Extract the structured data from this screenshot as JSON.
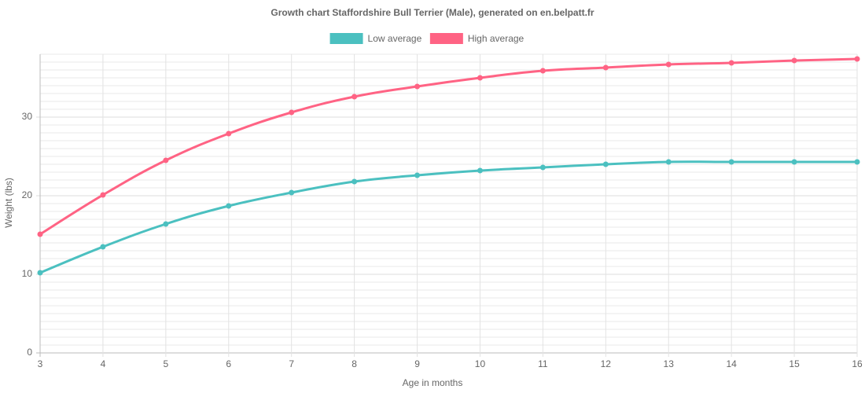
{
  "chart_data": {
    "type": "line",
    "title": "Growth chart Staffordshire Bull Terrier (Male), generated on en.belpatt.fr",
    "xlabel": "Age in months",
    "ylabel": "Weight (lbs)",
    "x": [
      3,
      4,
      5,
      6,
      7,
      8,
      9,
      10,
      11,
      12,
      13,
      14,
      15,
      16
    ],
    "series": [
      {
        "name": "Low average",
        "color": "#4bc0c0",
        "values": [
          10.2,
          13.5,
          16.4,
          18.7,
          20.4,
          21.8,
          22.6,
          23.2,
          23.6,
          24.0,
          24.3,
          24.3,
          24.3,
          24.3
        ]
      },
      {
        "name": "High average",
        "color": "#ff6384",
        "values": [
          15.1,
          20.1,
          24.5,
          27.9,
          30.6,
          32.6,
          33.9,
          35.0,
          35.9,
          36.3,
          36.7,
          36.9,
          37.2,
          37.4
        ]
      }
    ],
    "xlim": [
      3,
      16
    ],
    "xticks": [
      3,
      4,
      5,
      6,
      7,
      8,
      9,
      10,
      11,
      12,
      13,
      14,
      15,
      16
    ],
    "ylim": [
      0,
      38
    ],
    "yticks": [
      0,
      10,
      20,
      30
    ],
    "minor_yticks": [
      1,
      2,
      3,
      4,
      5,
      6,
      7,
      8,
      9,
      11,
      12,
      13,
      14,
      15,
      16,
      17,
      18,
      19,
      21,
      22,
      23,
      24,
      25,
      26,
      27,
      28,
      29,
      31,
      32,
      33,
      34,
      35,
      36,
      37,
      38
    ],
    "grid": true,
    "legend": "top"
  }
}
